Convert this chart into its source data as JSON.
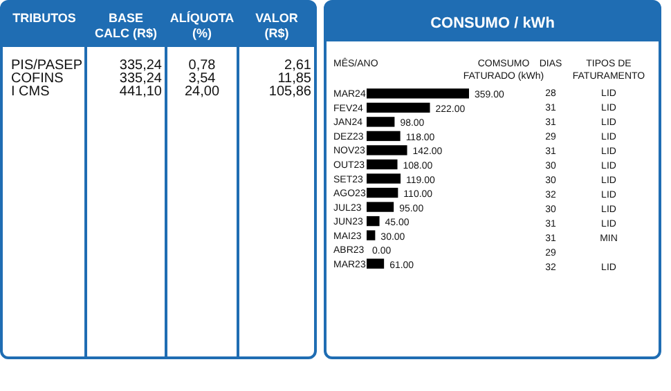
{
  "chart_data": [
    {
      "type": "other",
      "annotations": [
        "TRIBUTOS",
        "BASE\nCALC (R$)",
        "ALÍQUOTA\n(%)",
        "VALOR\n(R$)",
        "PIS/PASEP",
        "335,24",
        "0,78",
        "2,61",
        "COFINS",
        "335,24",
        "3,54",
        "11,85",
        "I CMS",
        "441,10",
        "24,00",
        "105,86"
      ]
    },
    {
      "type": "bar",
      "orientation": "horizontal",
      "title": "CONSUMO / kWh",
      "ylabel": "MÊS/ANO",
      "xlabel": "COMSUMO\nFATURADO (kWh)",
      "color": "#000000",
      "categories": [
        "MAR24",
        "FEV24",
        "JAN24",
        "DEZ23",
        "NOV23",
        "OUT23",
        "SET23",
        "AGO23",
        "JUL23",
        "JUN23",
        "MAI23",
        "ABR23",
        "MAR23"
      ],
      "values": [
        359,
        222,
        98,
        118,
        142,
        108,
        119,
        110,
        95,
        45,
        30,
        0,
        61
      ],
      "value_labels": [
        "359.00",
        "222.00",
        "98.00",
        "118.00",
        "142.00",
        "108.00",
        "119.00",
        "110.00",
        "95.00",
        "45.00",
        "30.00",
        "0.00",
        "61.00"
      ],
      "annotations": [
        "DIAS",
        "TIPOS DE\nFATURAMENTO",
        "28\n31\n31\n29\n31\n30\n30\n32\n30\n31\n31\n29\n32",
        "LID\nLID\nLID\nLID\nLID\nLID\nLID\nLID\nLID\nLID\nMIN\n\nLID"
      ]
    }
  ]
}
